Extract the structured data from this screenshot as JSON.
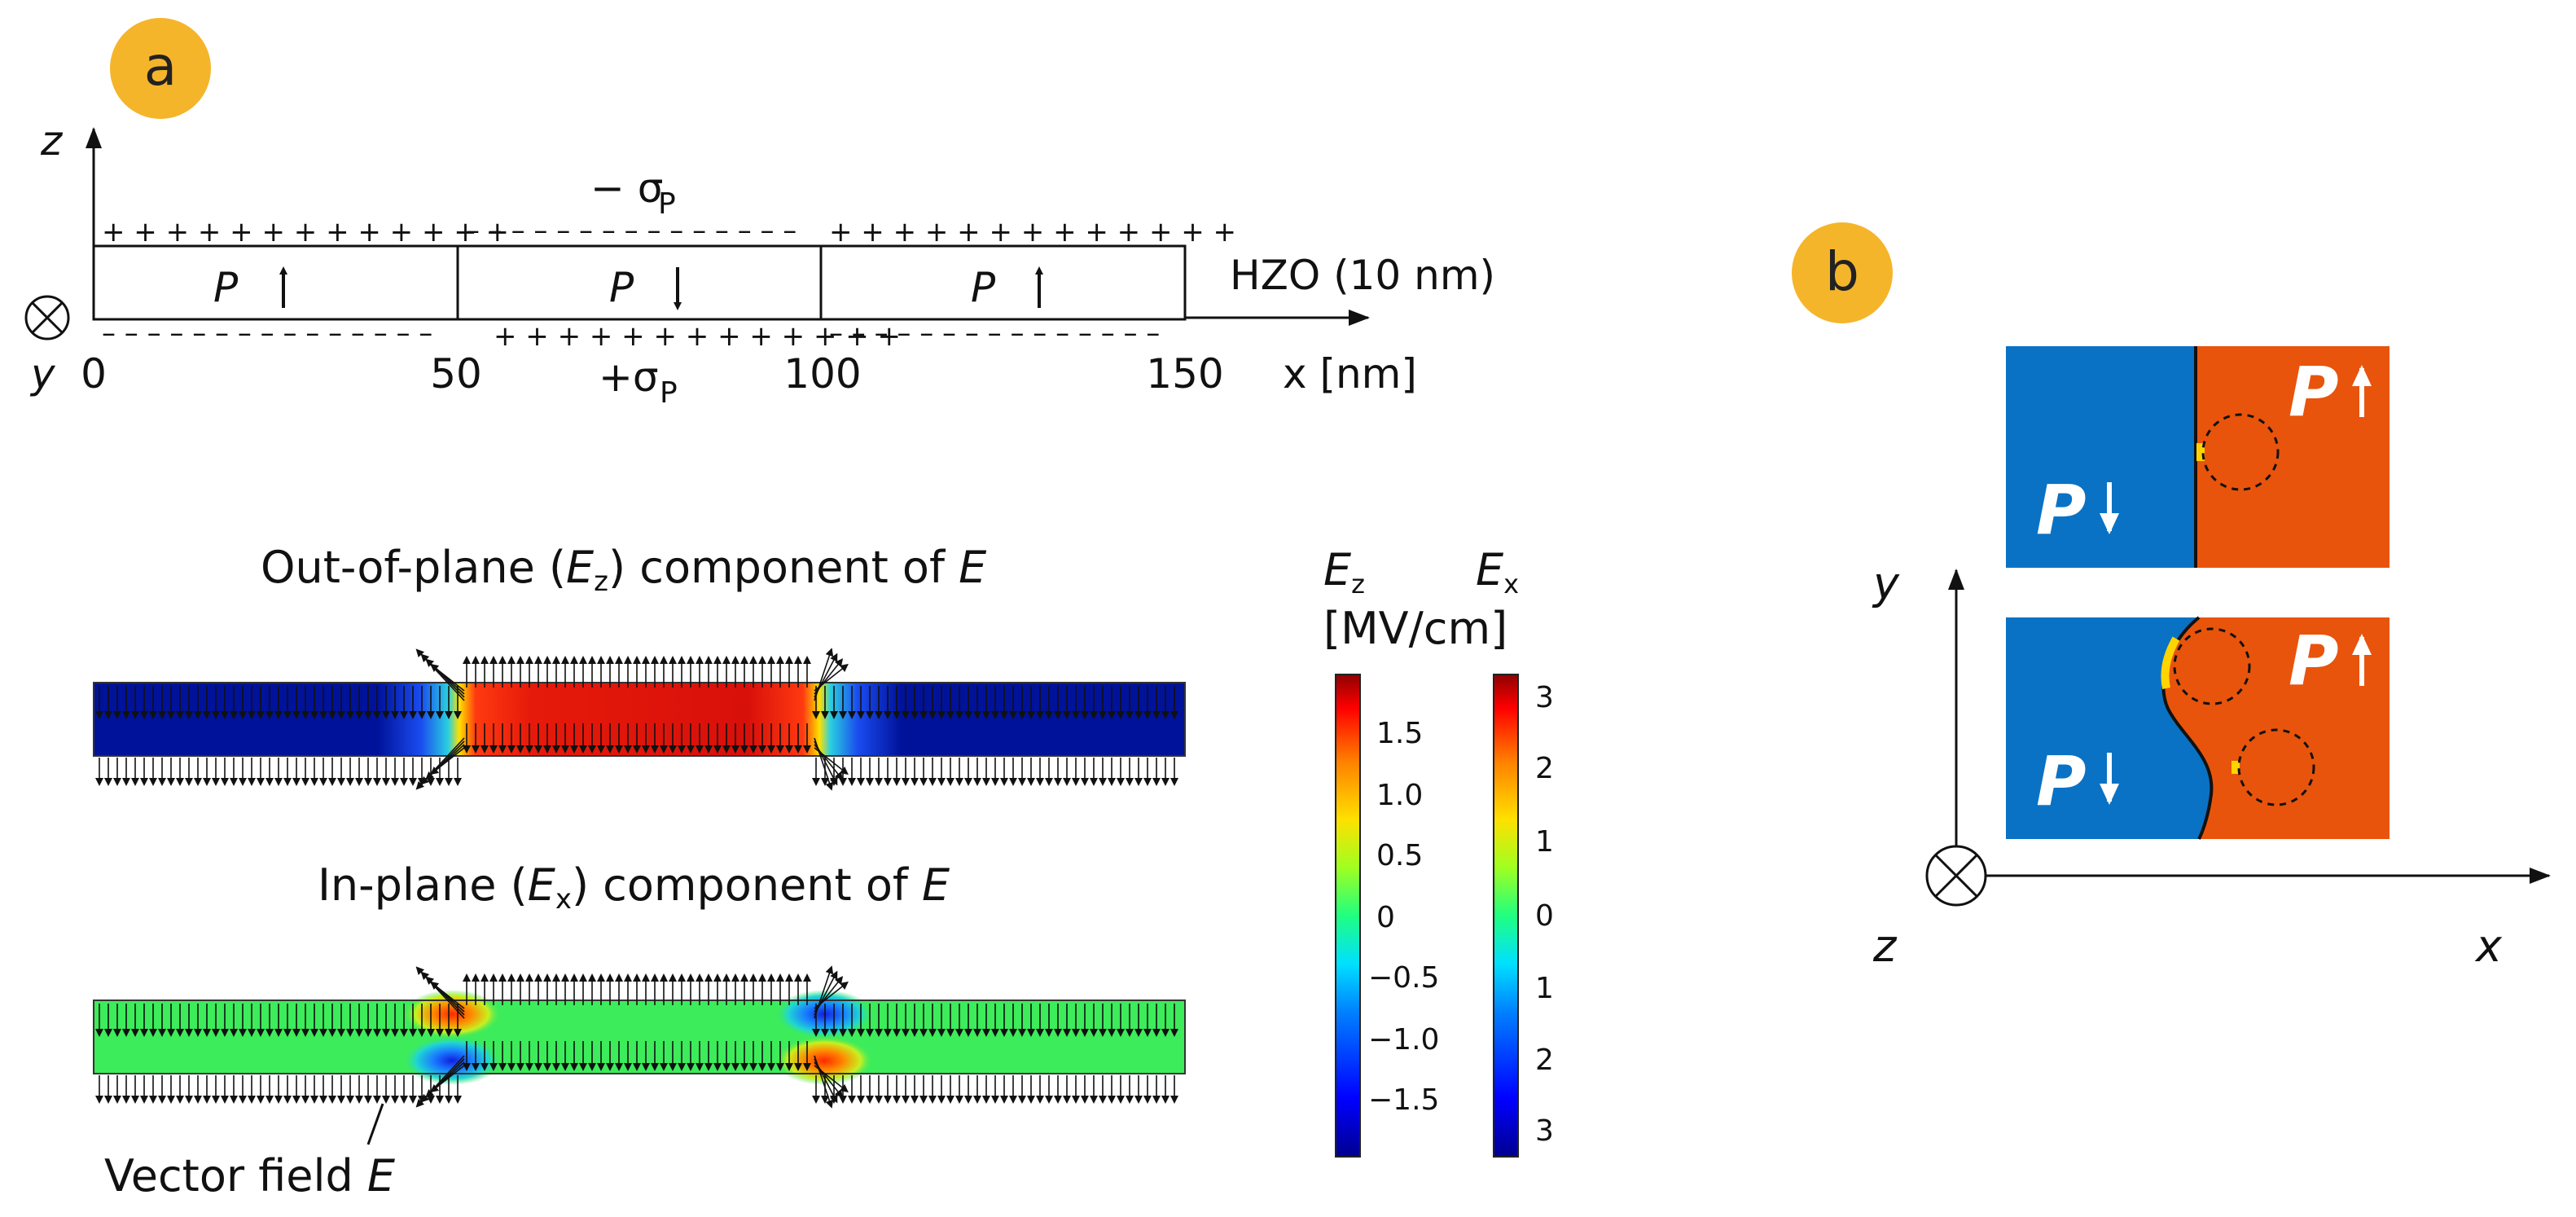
{
  "panel_a": {
    "label": "a",
    "z_axis": "z",
    "y_axis": "y",
    "x_axis_label": "x [nm]",
    "x_ticks": [
      "0",
      "50",
      "100",
      "150"
    ],
    "minus_sigma": "− σ",
    "plus_sigma": "+σ",
    "sigma_sub": "P",
    "plus_run": "+ + + + + + + + + + + + +",
    "minus_run": "– – – – – – – – – – – – – – –",
    "film_label": "HZO (10 nm)",
    "domains": [
      {
        "label": "P",
        "dir": "up"
      },
      {
        "label": "P",
        "dir": "down"
      },
      {
        "label": "P",
        "dir": "up"
      }
    ],
    "ez_title_pre": "Out-of-plane (",
    "ez_title_sym": "E",
    "ez_title_sub": "z",
    "ez_title_post": ") component of ",
    "ez_title_end": "E",
    "ex_title_pre": "In-plane (",
    "ex_title_sym": "E",
    "ex_title_sub": "x",
    "ex_title_post": ") component of ",
    "ex_title_end": "E",
    "vector_label_pre": "Vector field ",
    "vector_label_sym": "E"
  },
  "colorbars": {
    "ez_label": "E",
    "ez_sub": "z",
    "ex_label": "E",
    "ex_sub": "x",
    "units": "[MV/cm]",
    "ez_ticks": [
      "1.5",
      "1.0",
      "0.5",
      "0",
      "−0.5",
      "−1.0",
      "−1.5"
    ],
    "ex_ticks": [
      "3",
      "2",
      "1",
      "0",
      "1",
      "2",
      "3"
    ],
    "colors": [
      "#00008f",
      "#0000ff",
      "#0080ff",
      "#00e0ff",
      "#20ff80",
      "#a0ff20",
      "#ffe000",
      "#ff8000",
      "#ff0000",
      "#8f0000"
    ]
  },
  "panel_b": {
    "label": "b",
    "y_axis": "y",
    "z_axis": "z",
    "x_axis": "x",
    "left_domain": "P",
    "right_domain": "P",
    "left_color": "#0a72c4",
    "right_color": "#e8540c"
  },
  "badge_color": "#f5b52a"
}
